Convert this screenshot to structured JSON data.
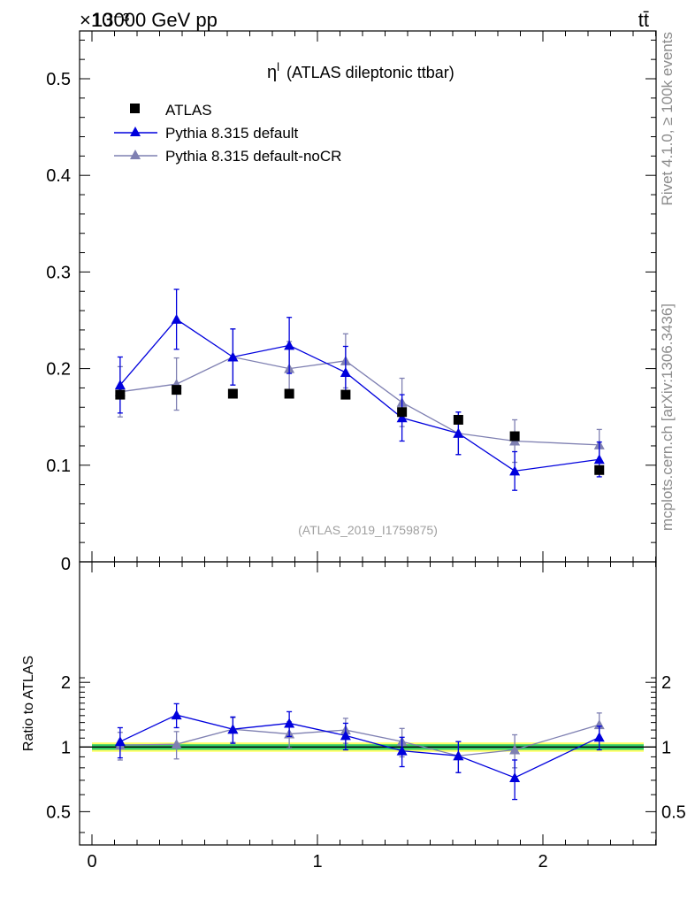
{
  "header": {
    "energy_label": "13000 GeV pp",
    "process_label": "tt̄",
    "exponent_label": "×10⁻³"
  },
  "side_text": {
    "rivet": "Rivet 4.1.0, ≥ 100k events",
    "mcplots": "mcplots.cern.ch [arXiv:1306.3436]"
  },
  "watermark": "(ATLAS_2019_I1759875)",
  "chart_data": [
    {
      "type": "scatter",
      "panel": "main",
      "title_symbol": "η",
      "title_sup": "l",
      "title": "(ATLAS dileptonic ttbar)",
      "xlim": [
        0,
        2.5
      ],
      "ylim": [
        0,
        0.55
      ],
      "y_scale_note": "values in units of 1e-3",
      "yticks": [
        0.1,
        0.2,
        0.3,
        0.4,
        0.5
      ],
      "ytick_labels": [
        "0.1",
        "0.2",
        "0.3",
        "0.4",
        "0.5"
      ],
      "y_zero_label": "0",
      "legend": [
        "ATLAS",
        "Pythia 8.315 default",
        "Pythia 8.315 default-noCR"
      ],
      "colors": {
        "data": "#000000",
        "default": "#0000dd",
        "nocr": "#7f80b2",
        "band_inner": "#33cc66",
        "band_outer": "#ffff66"
      },
      "series": [
        {
          "name": "ATLAS",
          "marker": "square",
          "x": [
            0.125,
            0.375,
            0.625,
            0.875,
            1.125,
            1.375,
            1.625,
            1.875,
            2.25
          ],
          "y": [
            0.173,
            0.178,
            0.174,
            0.174,
            0.173,
            0.155,
            0.147,
            0.13,
            0.095
          ],
          "err": [
            0.004,
            0.004,
            0.004,
            0.004,
            0.004,
            0.004,
            0.004,
            0.004,
            0.003
          ]
        },
        {
          "name": "Pythia 8.315 default",
          "marker": "triangle",
          "x": [
            0.125,
            0.375,
            0.625,
            0.875,
            1.125,
            1.375,
            1.625,
            1.875,
            2.25
          ],
          "y": [
            0.183,
            0.251,
            0.212,
            0.224,
            0.196,
            0.149,
            0.133,
            0.094,
            0.106
          ],
          "err": [
            0.029,
            0.031,
            0.029,
            0.029,
            0.027,
            0.024,
            0.022,
            0.02,
            0.018
          ]
        },
        {
          "name": "Pythia 8.315 default-noCR",
          "marker": "triangle",
          "x": [
            0.125,
            0.375,
            0.625,
            0.875,
            1.125,
            1.375,
            1.625,
            1.875,
            2.25
          ],
          "y": [
            0.176,
            0.184,
            0.212,
            0.2,
            0.208,
            0.165,
            0.133,
            0.125,
            0.121
          ],
          "err": [
            0.026,
            0.027,
            0.029,
            0.028,
            0.028,
            0.025,
            0.022,
            0.022,
            0.016
          ]
        }
      ]
    },
    {
      "type": "line",
      "panel": "ratio",
      "ylabel": "Ratio to ATLAS",
      "xlim": [
        0,
        2.5
      ],
      "ylim": [
        0.35,
        2.3
      ],
      "xticks": [
        0,
        1,
        2
      ],
      "xtick_labels": [
        "0",
        "1",
        "2"
      ],
      "yticks": [
        0.5,
        1,
        2
      ],
      "ytick_labels": [
        "0.5",
        "1",
        "2"
      ],
      "band_inner": [
        0.97,
        1.03
      ],
      "band_outer": [
        0.95,
        1.05
      ],
      "series": [
        {
          "name": "Pythia 8.315 default",
          "x": [
            0.125,
            0.375,
            0.625,
            0.875,
            1.125,
            1.375,
            1.625,
            1.875,
            2.25
          ],
          "y": [
            1.06,
            1.41,
            1.21,
            1.29,
            1.13,
            0.96,
            0.91,
            0.72,
            1.11
          ],
          "err": [
            0.17,
            0.18,
            0.17,
            0.17,
            0.16,
            0.15,
            0.15,
            0.15,
            0.14
          ]
        },
        {
          "name": "Pythia 8.315 default-noCR",
          "x": [
            0.125,
            0.375,
            0.625,
            0.875,
            1.125,
            1.375,
            1.625,
            1.875,
            2.25
          ],
          "y": [
            1.02,
            1.03,
            1.21,
            1.15,
            1.2,
            1.06,
            0.91,
            0.97,
            1.27
          ],
          "err": [
            0.15,
            0.15,
            0.16,
            0.16,
            0.16,
            0.16,
            0.15,
            0.17,
            0.17
          ]
        }
      ]
    }
  ]
}
